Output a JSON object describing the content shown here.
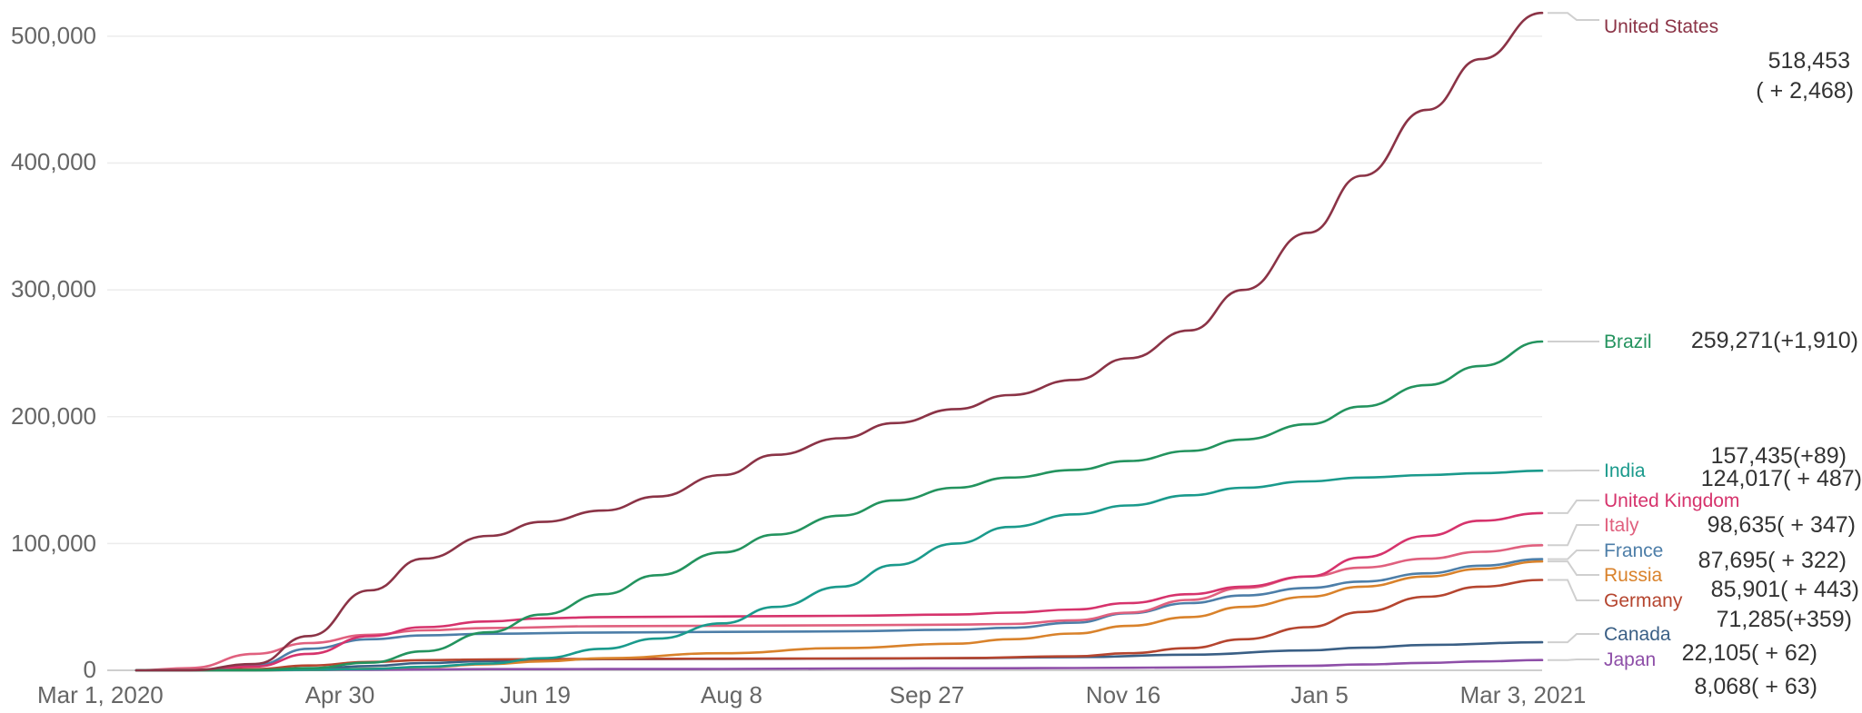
{
  "chart_data": {
    "type": "line",
    "x_ticks": [
      "Mar 1, 2020",
      "Apr 30",
      "Jun 19",
      "Aug 8",
      "Sep 27",
      "Nov 16",
      "Jan 5",
      "Mar 3, 2021"
    ],
    "y_ticks": [
      "0",
      "100,000",
      "200,000",
      "300,000",
      "400,000",
      "500,000"
    ],
    "ylim": [
      0,
      520000
    ],
    "grid": true,
    "series": [
      {
        "name": "United States",
        "color": "#8b3346",
        "value_label": "518,453",
        "change_label": "( + 2,468)",
        "x": [
          "Mar 1, 2020",
          "Mar 15, 2020",
          "Apr 1, 2020",
          "Apr 15, 2020",
          "May 1, 2020",
          "May 15, 2020",
          "Jun 1, 2020",
          "Jun 15, 2020",
          "Jul 1, 2020",
          "Jul 15, 2020",
          "Aug 1, 2020",
          "Aug 15, 2020",
          "Sep 1, 2020",
          "Sep 15, 2020",
          "Oct 1, 2020",
          "Oct 15, 2020",
          "Nov 1, 2020",
          "Nov 15, 2020",
          "Dec 1, 2020",
          "Dec 15, 2020",
          "Jan 1, 2021",
          "Jan 15, 2021",
          "Feb 1, 2021",
          "Feb 15, 2021",
          "Mar 3, 2021"
        ],
        "y": [
          0,
          100,
          5000,
          27000,
          63000,
          88000,
          106000,
          117000,
          126000,
          137000,
          154000,
          170000,
          183000,
          195000,
          206000,
          217000,
          229000,
          246000,
          268000,
          300000,
          345000,
          390000,
          442000,
          482000,
          518453
        ]
      },
      {
        "name": "Brazil",
        "color": "#23935e",
        "value_label": "259,271(+1,910)",
        "x": [
          "Mar 1, 2020",
          "Apr 1, 2020",
          "Apr 15, 2020",
          "May 1, 2020",
          "May 15, 2020",
          "Jun 1, 2020",
          "Jun 15, 2020",
          "Jul 1, 2020",
          "Jul 15, 2020",
          "Aug 1, 2020",
          "Aug 15, 2020",
          "Sep 1, 2020",
          "Sep 15, 2020",
          "Oct 1, 2020",
          "Oct 15, 2020",
          "Nov 1, 2020",
          "Nov 15, 2020",
          "Dec 1, 2020",
          "Dec 15, 2020",
          "Jan 1, 2021",
          "Jan 15, 2021",
          "Feb 1, 2021",
          "Feb 15, 2021",
          "Mar 3, 2021"
        ],
        "y": [
          0,
          200,
          1700,
          6000,
          15000,
          30000,
          44000,
          60000,
          75000,
          93000,
          107000,
          122000,
          134000,
          144000,
          152000,
          158000,
          165000,
          173000,
          182000,
          194000,
          208000,
          225000,
          240000,
          259271
        ]
      },
      {
        "name": "India",
        "color": "#1a9a8c",
        "value_label": "157,435(+89)",
        "x": [
          "Mar 1, 2020",
          "Apr 1, 2020",
          "Apr 15, 2020",
          "May 1, 2020",
          "May 15, 2020",
          "Jun 1, 2020",
          "Jun 15, 2020",
          "Jul 1, 2020",
          "Jul 15, 2020",
          "Aug 1, 2020",
          "Aug 15, 2020",
          "Sep 1, 2020",
          "Sep 15, 2020",
          "Oct 1, 2020",
          "Oct 15, 2020",
          "Nov 1, 2020",
          "Nov 15, 2020",
          "Dec 1, 2020",
          "Dec 15, 2020",
          "Jan 1, 2021",
          "Jan 15, 2021",
          "Feb 1, 2021",
          "Feb 15, 2021",
          "Mar 3, 2021"
        ],
        "y": [
          0,
          50,
          400,
          1100,
          2700,
          5400,
          9500,
          17000,
          25000,
          37000,
          50000,
          66000,
          83000,
          100000,
          113000,
          123000,
          130000,
          138000,
          144000,
          149000,
          152000,
          154000,
          155500,
          157435
        ]
      },
      {
        "name": "United Kingdom",
        "color": "#d6336c",
        "value_label": "124,017( + 487)",
        "x": [
          "Mar 1, 2020",
          "Mar 15, 2020",
          "Apr 1, 2020",
          "Apr 15, 2020",
          "May 1, 2020",
          "May 15, 2020",
          "Jun 1, 2020",
          "Jun 15, 2020",
          "Jul 1, 2020",
          "Aug 1, 2020",
          "Sep 1, 2020",
          "Oct 1, 2020",
          "Oct 15, 2020",
          "Nov 1, 2020",
          "Nov 15, 2020",
          "Dec 1, 2020",
          "Dec 15, 2020",
          "Jan 1, 2021",
          "Jan 15, 2021",
          "Feb 1, 2021",
          "Feb 15, 2021",
          "Mar 3, 2021"
        ],
        "y": [
          0,
          50,
          3000,
          13000,
          27000,
          34000,
          38500,
          41000,
          42000,
          42500,
          43000,
          44000,
          45500,
          48000,
          53000,
          60000,
          66000,
          74000,
          89000,
          106000,
          118000,
          124017
        ]
      },
      {
        "name": "Italy",
        "color": "#e0607e",
        "value_label": "98,635( + 347)",
        "x": [
          "Mar 1, 2020",
          "Mar 15, 2020",
          "Apr 1, 2020",
          "Apr 15, 2020",
          "May 1, 2020",
          "May 15, 2020",
          "Jun 1, 2020",
          "Jul 1, 2020",
          "Aug 1, 2020",
          "Sep 1, 2020",
          "Oct 1, 2020",
          "Oct 15, 2020",
          "Nov 1, 2020",
          "Nov 15, 2020",
          "Dec 1, 2020",
          "Dec 15, 2020",
          "Jan 1, 2021",
          "Jan 15, 2021",
          "Feb 1, 2021",
          "Feb 15, 2021",
          "Mar 3, 2021"
        ],
        "y": [
          0,
          1800,
          13000,
          21500,
          28000,
          31500,
          33400,
          34800,
          35200,
          35500,
          36000,
          36500,
          39500,
          45500,
          55500,
          65000,
          74000,
          81000,
          88000,
          93500,
          98635
        ]
      },
      {
        "name": "France",
        "color": "#4d7ea8",
        "value_label": "87,695( + 322)",
        "x": [
          "Mar 1, 2020",
          "Mar 15, 2020",
          "Apr 1, 2020",
          "Apr 15, 2020",
          "May 1, 2020",
          "May 15, 2020",
          "Jun 1, 2020",
          "Jul 1, 2020",
          "Aug 1, 2020",
          "Sep 1, 2020",
          "Oct 1, 2020",
          "Oct 15, 2020",
          "Nov 1, 2020",
          "Nov 15, 2020",
          "Dec 1, 2020",
          "Dec 15, 2020",
          "Jan 1, 2021",
          "Jan 15, 2021",
          "Feb 1, 2021",
          "Feb 15, 2021",
          "Mar 3, 2021"
        ],
        "y": [
          0,
          100,
          4000,
          17000,
          24500,
          27500,
          28800,
          29800,
          30300,
          30700,
          32000,
          33500,
          37500,
          45000,
          53000,
          59000,
          65000,
          70000,
          76500,
          82500,
          87695
        ]
      },
      {
        "name": "Russia",
        "color": "#d9822b",
        "value_label": "85,901( + 443)",
        "x": [
          "Mar 1, 2020",
          "Apr 1, 2020",
          "Apr 15, 2020",
          "May 1, 2020",
          "May 15, 2020",
          "Jun 1, 2020",
          "Jun 15, 2020",
          "Jul 1, 2020",
          "Aug 1, 2020",
          "Sep 1, 2020",
          "Oct 1, 2020",
          "Oct 15, 2020",
          "Nov 1, 2020",
          "Nov 15, 2020",
          "Dec 1, 2020",
          "Dec 15, 2020",
          "Jan 1, 2021",
          "Jan 15, 2021",
          "Feb 1, 2021",
          "Feb 15, 2021",
          "Mar 3, 2021"
        ],
        "y": [
          0,
          20,
          300,
          1200,
          2500,
          4800,
          7000,
          9500,
          13500,
          17500,
          21000,
          24500,
          29000,
          35000,
          42000,
          50000,
          58000,
          66000,
          74000,
          80000,
          85901
        ]
      },
      {
        "name": "Germany",
        "color": "#b5452f",
        "value_label": "71,285(+359)",
        "x": [
          "Mar 1, 2020",
          "Apr 1, 2020",
          "Apr 15, 2020",
          "May 1, 2020",
          "May 15, 2020",
          "Jun 1, 2020",
          "Jul 1, 2020",
          "Aug 1, 2020",
          "Sep 1, 2020",
          "Oct 1, 2020",
          "Nov 1, 2020",
          "Nov 15, 2020",
          "Dec 1, 2020",
          "Dec 15, 2020",
          "Jan 1, 2021",
          "Jan 15, 2021",
          "Feb 1, 2021",
          "Feb 15, 2021",
          "Mar 3, 2021"
        ],
        "y": [
          0,
          900,
          3800,
          6600,
          8000,
          8600,
          9000,
          9200,
          9300,
          9600,
          11000,
          13500,
          17500,
          24500,
          34000,
          46000,
          58000,
          66000,
          71285
        ]
      },
      {
        "name": "Canada",
        "color": "#3a5f85",
        "value_label": "22,105( + 62)",
        "x": [
          "Mar 1, 2020",
          "Apr 1, 2020",
          "Apr 15, 2020",
          "May 1, 2020",
          "May 15, 2020",
          "Jun 1, 2020",
          "Jul 1, 2020",
          "Aug 1, 2020",
          "Sep 1, 2020",
          "Oct 1, 2020",
          "Nov 1, 2020",
          "Dec 1, 2020",
          "Jan 1, 2021",
          "Jan 15, 2021",
          "Feb 1, 2021",
          "Mar 3, 2021"
        ],
        "y": [
          0,
          100,
          1000,
          3400,
          5700,
          7300,
          8800,
          9000,
          9200,
          9500,
          10400,
          12300,
          15700,
          17800,
          20000,
          22105
        ]
      },
      {
        "name": "Japan",
        "color": "#8e4fa8",
        "value_label": "8,068( + 63)",
        "x": [
          "Mar 1, 2020",
          "Apr 1, 2020",
          "May 1, 2020",
          "Jun 1, 2020",
          "Jul 1, 2020",
          "Aug 1, 2020",
          "Sep 1, 2020",
          "Oct 1, 2020",
          "Nov 1, 2020",
          "Dec 1, 2020",
          "Jan 1, 2021",
          "Jan 15, 2021",
          "Feb 1, 2021",
          "Feb 15, 2021",
          "Mar 3, 2021"
        ],
        "y": [
          0,
          60,
          450,
          900,
          1000,
          1100,
          1400,
          1600,
          1800,
          2300,
          3500,
          4600,
          5900,
          7000,
          8068
        ]
      }
    ]
  }
}
